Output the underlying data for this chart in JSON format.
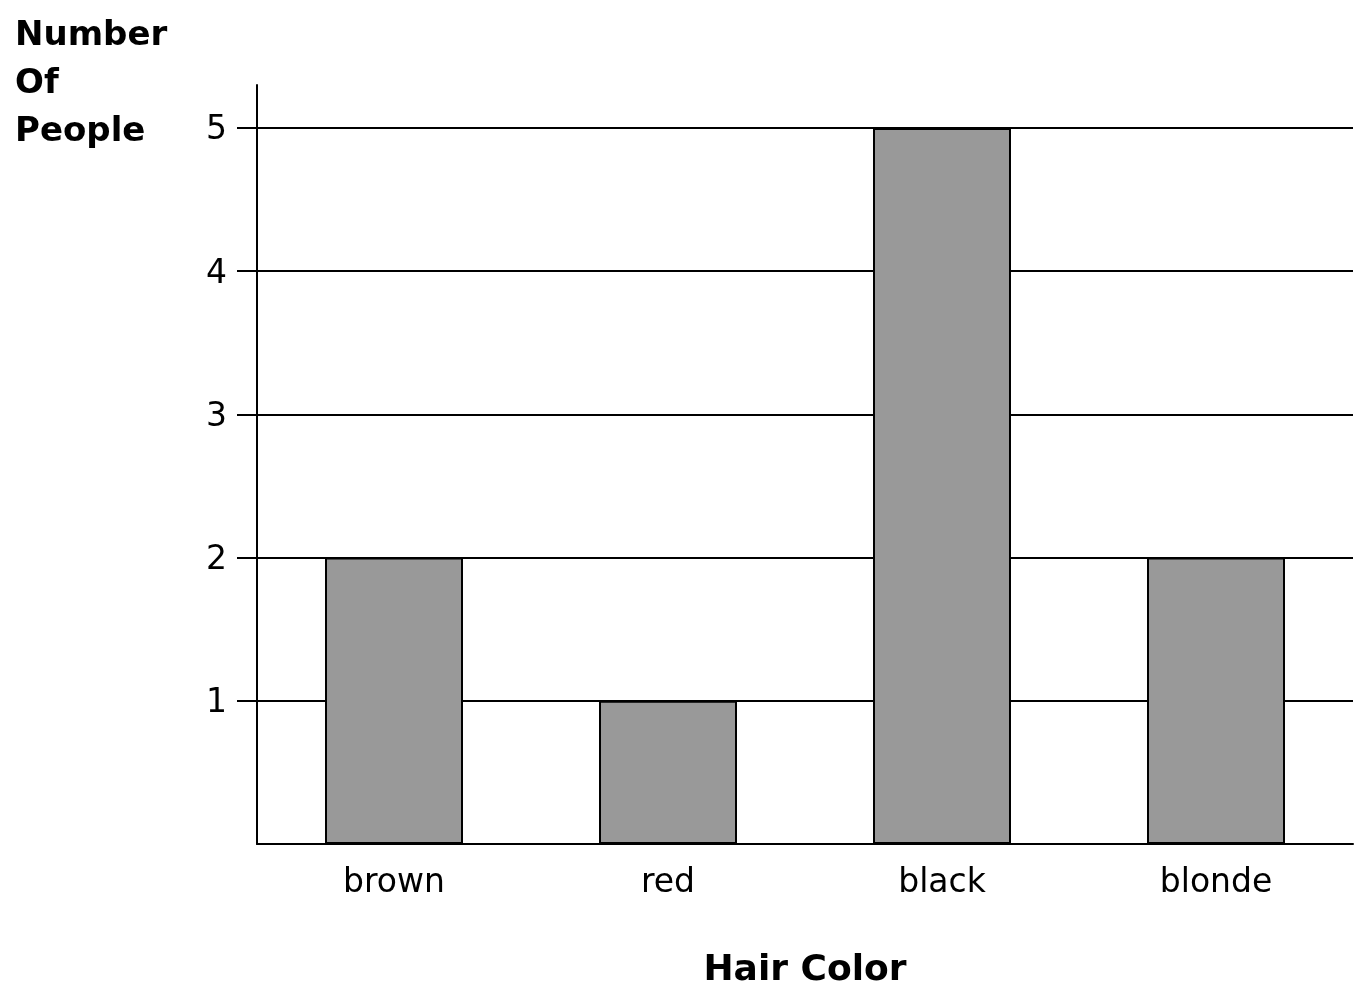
{
  "chart_data": {
    "type": "bar",
    "xlabel": "Hair Color",
    "ylabel": "Number Of People",
    "categories": [
      "brown",
      "red",
      "black",
      "blonde"
    ],
    "values": [
      2,
      1,
      5,
      2
    ],
    "color": "#999999",
    "ylim": [
      0,
      5.3
    ],
    "yticks": [
      1,
      2,
      3,
      4,
      5
    ],
    "grid": "y"
  }
}
